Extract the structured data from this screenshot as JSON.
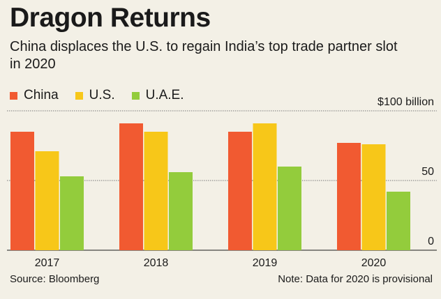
{
  "title": "Dragon Returns",
  "subtitle": "China displaces the U.S. to regain India’s top trade partner slot in 2020",
  "source": "Source: Bloomberg",
  "note": "Note: Data for 2020 is provisional",
  "legend": [
    {
      "name": "China",
      "color": "#f15a31"
    },
    {
      "name": "U.S.",
      "color": "#f7c719"
    },
    {
      "name": "U.A.E.",
      "color": "#93cc3c"
    }
  ],
  "chart_data": {
    "type": "bar",
    "categories": [
      "2017",
      "2018",
      "2019",
      "2020"
    ],
    "series": [
      {
        "name": "China",
        "color": "#f15a31",
        "values": [
          85,
          91,
          85,
          77
        ]
      },
      {
        "name": "U.S.",
        "color": "#f7c719",
        "values": [
          71,
          85,
          91,
          76
        ]
      },
      {
        "name": "U.A.E.",
        "color": "#93cc3c",
        "values": [
          53,
          56,
          60,
          42
        ]
      }
    ],
    "ylim": [
      0,
      100
    ],
    "yticks": [
      {
        "value": 100,
        "label": "$100 billion"
      },
      {
        "value": 50,
        "label": "50"
      },
      {
        "value": 0,
        "label": "0"
      }
    ],
    "grid": true,
    "legend_position": "top-left"
  }
}
